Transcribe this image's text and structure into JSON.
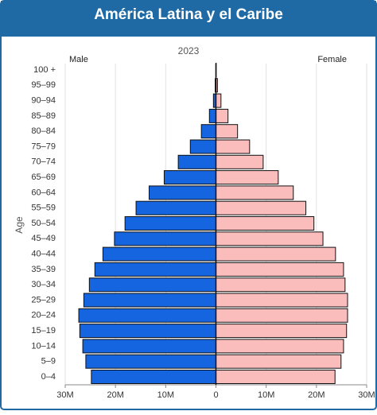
{
  "chart_data": {
    "type": "pyramid",
    "title": "América Latina y el Caribe",
    "subtitle": "2023",
    "y_label": "Age",
    "categories": [
      "100 +",
      "95–99",
      "90–94",
      "85–89",
      "80–84",
      "75–79",
      "70–74",
      "65–69",
      "60–64",
      "55–59",
      "50–54",
      "45–49",
      "40–44",
      "35–39",
      "30–34",
      "25–29",
      "20–24",
      "15–19",
      "10–14",
      "5–9",
      "0–4"
    ],
    "series": [
      {
        "name": "Male",
        "color": "#1565e0",
        "values": [
          -20000,
          -150000,
          -500000,
          -1300000,
          -2900000,
          -5100000,
          -7500000,
          -10300000,
          -13300000,
          -15900000,
          -18100000,
          -20200000,
          -22500000,
          -24100000,
          -25200000,
          -26300000,
          -27300000,
          -27100000,
          -26500000,
          -25900000,
          -24800000
        ]
      },
      {
        "name": "Female",
        "color": "#fbbcbc",
        "values": [
          50000,
          300000,
          1000000,
          2400000,
          4300000,
          6700000,
          9400000,
          12400000,
          15400000,
          17900000,
          19500000,
          21300000,
          23800000,
          25400000,
          25700000,
          26200000,
          26200000,
          26000000,
          25400000,
          24900000,
          23700000
        ]
      }
    ],
    "xlim": [
      -30000000,
      30000000
    ],
    "xticks": [
      {
        "value": -30000000,
        "label": "30M"
      },
      {
        "value": -20000000,
        "label": "20M"
      },
      {
        "value": -10000000,
        "label": "10M"
      },
      0,
      {
        "value": 10000000,
        "label": "10M"
      },
      {
        "value": 20000000,
        "label": "20M"
      },
      {
        "value": 30000000,
        "label": "30M"
      }
    ],
    "grid": true
  }
}
